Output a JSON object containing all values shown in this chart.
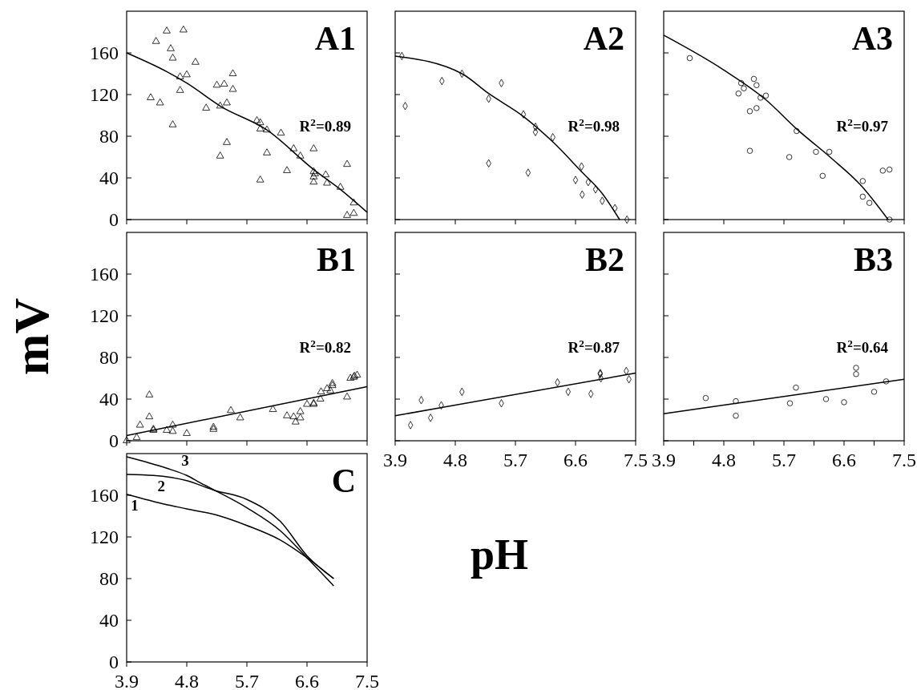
{
  "chart_data": [
    {
      "type": "scatter",
      "title": "A1",
      "xlim": [
        3.9,
        7.5
      ],
      "ylim": [
        0,
        200
      ],
      "xticks": [
        3.9,
        4.8,
        5.7,
        6.6,
        7.5
      ],
      "yticks": [
        0,
        40,
        80,
        120,
        160
      ],
      "tick_labels": "y",
      "annotations": [
        "R$^{2}$=0.89"
      ],
      "series": [
        {
          "marker": "triangle",
          "color": "#000000",
          "x": [
            4.26,
            4.34,
            4.4,
            4.5,
            4.56,
            4.59,
            4.59,
            4.7,
            4.7,
            4.75,
            4.8,
            4.93,
            5.09,
            5.25,
            5.3,
            5.3,
            5.36,
            5.4,
            5.4,
            5.49,
            5.49,
            5.85,
            5.9,
            5.9,
            5.9,
            6.0,
            6.0,
            6.21,
            6.3,
            6.4,
            6.5,
            6.7,
            6.7,
            6.7,
            6.7,
            6.72,
            6.88,
            6.9,
            7.1,
            7.2,
            7.2,
            7.3,
            7.3
          ],
          "values": [
            117,
            171,
            112,
            181,
            164,
            155,
            91,
            137,
            124,
            182,
            139,
            151,
            107,
            129,
            109,
            61,
            130,
            112,
            74,
            140,
            125,
            95,
            93,
            87,
            38,
            86,
            64,
            83,
            47,
            68,
            61,
            68,
            46,
            41,
            36,
            44,
            43,
            35,
            31,
            53,
            4,
            16,
            6
          ]
        },
        {
          "type": "line",
          "color": "#000000",
          "x": [
            3.9,
            4.5,
            4.8,
            5.3,
            6.0,
            6.7,
            7.1,
            7.5
          ],
          "values": [
            160,
            142,
            131,
            109,
            86,
            48,
            29,
            7
          ]
        }
      ]
    },
    {
      "type": "scatter",
      "title": "A2",
      "xlim": [
        3.9,
        7.5
      ],
      "ylim": [
        0,
        200
      ],
      "xticks": [
        3.9,
        4.8,
        5.7,
        6.6,
        7.5
      ],
      "yticks": [
        0,
        40,
        80,
        120,
        160
      ],
      "tick_labels": false,
      "annotations": [
        "R$^{2}$=0.98"
      ],
      "series": [
        {
          "marker": "diamond",
          "color": "#000000",
          "x": [
            4.0,
            4.05,
            4.6,
            4.9,
            5.3,
            5.3,
            5.49,
            5.82,
            5.89,
            6.0,
            6.0,
            6.26,
            6.6,
            6.69,
            6.7,
            6.79,
            6.9,
            7.0,
            7.19,
            7.37
          ],
          "values": [
            157,
            109,
            133,
            140,
            116,
            54,
            131,
            101,
            45,
            89,
            84,
            79,
            38,
            51,
            24,
            36,
            29,
            18,
            11,
            0
          ]
        },
        {
          "type": "line",
          "color": "#000000",
          "x": [
            3.9,
            4.9,
            5.3,
            5.82,
            6.27,
            6.69,
            7.0,
            7.26
          ],
          "values": [
            157,
            140,
            121,
            99,
            74,
            46,
            25,
            0
          ]
        }
      ]
    },
    {
      "type": "scatter",
      "title": "A3",
      "xlim": [
        3.9,
        7.5
      ],
      "ylim": [
        0,
        200
      ],
      "xticks": [
        3.9,
        4.8,
        5.7,
        6.6,
        7.5
      ],
      "yticks": [
        0,
        40,
        80,
        120,
        160
      ],
      "tick_labels": false,
      "annotations": [
        "R$^{2}$=0.97"
      ],
      "series": [
        {
          "marker": "circle",
          "color": "#000000",
          "x": [
            4.29,
            5.02,
            5.06,
            5.1,
            5.19,
            5.19,
            5.25,
            5.29,
            5.29,
            5.35,
            5.43,
            5.78,
            5.89,
            6.18,
            6.28,
            6.38,
            6.88,
            6.88,
            6.98,
            7.18,
            7.28,
            7.28
          ],
          "values": [
            155,
            121,
            131,
            126,
            104,
            66,
            135,
            129,
            107,
            117,
            119,
            60,
            85,
            65,
            42,
            65,
            37,
            22,
            16,
            47,
            48,
            0
          ]
        },
        {
          "type": "line",
          "color": "#000000",
          "x": [
            3.9,
            4.79,
            5.43,
            5.89,
            6.39,
            6.85,
            7.26
          ],
          "values": [
            177,
            144,
            115,
            87,
            60,
            33,
            0
          ]
        }
      ]
    },
    {
      "type": "scatter",
      "title": "B1",
      "ylabel": "mV",
      "xlim": [
        3.9,
        7.5
      ],
      "ylim": [
        0,
        200
      ],
      "xticks": [
        3.9,
        4.8,
        5.7,
        6.6,
        7.5
      ],
      "yticks": [
        0,
        40,
        80,
        120,
        160
      ],
      "tick_labels": "y",
      "annotations": [
        "R$^{2}$=0.82"
      ],
      "series": [
        {
          "marker": "triangle",
          "color": "#000000",
          "x": [
            3.9,
            4.05,
            4.1,
            4.24,
            4.24,
            4.3,
            4.3,
            4.5,
            4.59,
            4.59,
            4.8,
            5.2,
            5.2,
            5.46,
            5.6,
            6.09,
            6.3,
            6.4,
            6.43,
            6.5,
            6.5,
            6.6,
            6.7,
            6.7,
            6.8,
            6.81,
            6.9,
            6.95,
            6.98,
            6.98,
            7.2,
            7.25,
            7.3,
            7.31,
            7.35
          ],
          "values": [
            0,
            3,
            15,
            44,
            23,
            11,
            10,
            10,
            15,
            9,
            7,
            13,
            11,
            29,
            22,
            30,
            24,
            23,
            18,
            28,
            22,
            35,
            36,
            35,
            40,
            47,
            50,
            48,
            55,
            53,
            42,
            60,
            61,
            62,
            63
          ]
        },
        {
          "type": "line",
          "color": "#000000",
          "x": [
            3.9,
            7.5
          ],
          "values": [
            5,
            52
          ]
        }
      ]
    },
    {
      "type": "scatter",
      "title": "B2",
      "xlabel": "pH",
      "xlim": [
        3.9,
        7.5
      ],
      "ylim": [
        0,
        200
      ],
      "xticks": [
        3.9,
        4.8,
        5.7,
        6.6,
        7.5
      ],
      "yticks": [
        0,
        40,
        80,
        120,
        160
      ],
      "tick_labels": "x",
      "annotations": [
        "R$^{2}$=0.87"
      ],
      "series": [
        {
          "marker": "diamond",
          "color": "#000000",
          "x": [
            4.13,
            4.29,
            4.43,
            4.59,
            4.9,
            5.49,
            6.33,
            6.49,
            6.83,
            6.97,
            6.97,
            6.98,
            7.36,
            7.4
          ],
          "values": [
            15,
            39,
            22,
            34,
            47,
            36,
            56,
            47,
            45,
            65,
            64,
            60,
            67,
            59
          ]
        },
        {
          "type": "line",
          "color": "#000000",
          "x": [
            3.9,
            7.5
          ],
          "values": [
            24,
            65
          ]
        }
      ]
    },
    {
      "type": "scatter",
      "title": "B3",
      "xlim": [
        3.9,
        7.5
      ],
      "ylim": [
        0,
        200
      ],
      "xticks": [
        3.9,
        {
          "value": 4.35,
          "label": null
        },
        4.8,
        {
          "value": 5.25,
          "label": null
        },
        5.7,
        {
          "value": 6.15,
          "label": null
        },
        6.6,
        {
          "value": 7.05,
          "label": null
        },
        7.5
      ],
      "yticks": [
        0,
        40,
        80,
        120,
        160
      ],
      "tick_labels": "x",
      "annotations": [
        "R$^{2}$=0.64"
      ],
      "series": [
        {
          "marker": "circle",
          "color": "#000000",
          "x": [
            4.53,
            4.98,
            4.98,
            5.79,
            5.88,
            6.33,
            6.6,
            6.78,
            6.78,
            7.05,
            7.23
          ],
          "values": [
            41,
            38,
            24,
            36,
            51,
            40,
            37,
            70,
            64,
            47,
            57
          ]
        },
        {
          "type": "line",
          "color": "#000000",
          "x": [
            3.9,
            7.5
          ],
          "values": [
            26,
            59
          ]
        }
      ]
    },
    {
      "type": "line",
      "title": "C",
      "xlim": [
        3.9,
        7.5
      ],
      "ylim": [
        0,
        200
      ],
      "xticks": [
        3.9,
        4.8,
        5.7,
        6.6,
        7.5
      ],
      "yticks": [
        0,
        40,
        80,
        120,
        160
      ],
      "series": [
        {
          "name": "1",
          "color": "#000000",
          "x": [
            3.9,
            4.5,
            4.8,
            5.3,
            5.7,
            6.2,
            6.6,
            7.0
          ],
          "values": [
            161,
            151,
            147,
            140,
            131,
            117,
            100,
            80
          ]
        },
        {
          "name": "2",
          "color": "#000000",
          "x": [
            3.9,
            4.3,
            4.8,
            5.2,
            5.7,
            6.2,
            6.6,
            7.0
          ],
          "values": [
            180,
            179,
            174,
            165,
            156,
            135,
            102,
            80
          ]
        },
        {
          "name": "3",
          "color": "#000000",
          "x": [
            3.9,
            4.5,
            4.8,
            5.0,
            5.7,
            6.2,
            6.6,
            7.0
          ],
          "values": [
            197,
            186,
            179,
            172,
            148,
            126,
            100,
            73
          ]
        }
      ]
    }
  ]
}
